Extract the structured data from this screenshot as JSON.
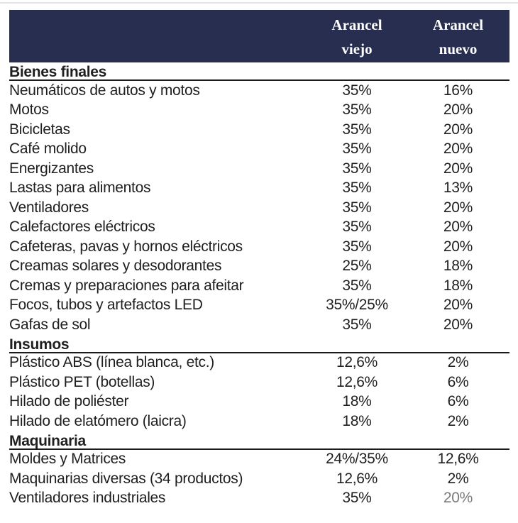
{
  "header": {
    "bg_color": "#272e4f",
    "text_color": "#ffffff",
    "col_viejo": {
      "line1": "Arancel",
      "line2": "viejo"
    },
    "col_nuevo": {
      "line1": "Arancel",
      "line2": "nuevo"
    }
  },
  "colors": {
    "body_text": "#1f1f1f",
    "rule": "#1a1a1a",
    "muted_value": "#7b7b7b",
    "top_line": "#e3e3e3"
  },
  "chart_data": {
    "type": "table",
    "columns": [
      "",
      "Arancel viejo",
      "Arancel nuevo"
    ],
    "sections": [
      {
        "title": "Bienes finales",
        "rows": [
          {
            "product": "Neumáticos de autos y motos",
            "viejo": "35%",
            "nuevo": "16%"
          },
          {
            "product": "Motos",
            "viejo": "35%",
            "nuevo": "20%"
          },
          {
            "product": "Bicicletas",
            "viejo": "35%",
            "nuevo": "20%"
          },
          {
            "product": "Café molido",
            "viejo": "35%",
            "nuevo": "20%"
          },
          {
            "product": "Energizantes",
            "viejo": "35%",
            "nuevo": "20%"
          },
          {
            "product": "Lastas para alimentos",
            "viejo": "35%",
            "nuevo": "13%"
          },
          {
            "product": "Ventiladores",
            "viejo": "35%",
            "nuevo": "20%"
          },
          {
            "product": "Calefactores eléctricos",
            "viejo": "35%",
            "nuevo": "20%"
          },
          {
            "product": "Cafeteras, pavas y hornos eléctricos",
            "viejo": "35%",
            "nuevo": "20%"
          },
          {
            "product": "Creamas solares y desodorantes",
            "viejo": "25%",
            "nuevo": "18%"
          },
          {
            "product": "Cremas y preparaciones para afeitar",
            "viejo": "35%",
            "nuevo": "18%"
          },
          {
            "product": "Focos, tubos y artefactos LED",
            "viejo": "35%/25%",
            "nuevo": "20%"
          },
          {
            "product": "Gafas de sol",
            "viejo": "35%",
            "nuevo": "20%"
          }
        ]
      },
      {
        "title": "Insumos",
        "rows": [
          {
            "product": "Plástico ABS (línea blanca, etc.)",
            "viejo": "12,6%",
            "nuevo": "2%"
          },
          {
            "product": "Plástico PET (botellas)",
            "viejo": "12,6%",
            "nuevo": "6%"
          },
          {
            "product": "Hilado de poliéster",
            "viejo": "18%",
            "nuevo": "6%"
          },
          {
            "product": "Hilado de elatómero (laicra)",
            "viejo": "18%",
            "nuevo": "2%"
          }
        ]
      },
      {
        "title": "Maquinaria",
        "rows": [
          {
            "product": "Moldes y Matrices",
            "viejo": "24%/35%",
            "nuevo": "12,6%"
          },
          {
            "product": "Maquinarias diversas (34 productos)",
            "viejo": "12,6%",
            "nuevo": "2%"
          },
          {
            "product": "Ventiladores industriales",
            "viejo": "35%",
            "nuevo": "20%",
            "nuevo_muted": true
          }
        ]
      }
    ]
  }
}
